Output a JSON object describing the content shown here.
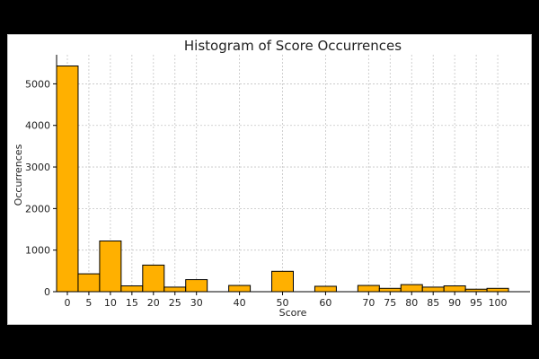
{
  "chart_data": {
    "type": "bar",
    "title": "Histogram of Score Occurrences",
    "xlabel": "Score",
    "ylabel": "Occurrences",
    "x": [
      0,
      5,
      10,
      15,
      20,
      25,
      30,
      40,
      50,
      60,
      70,
      75,
      80,
      85,
      90,
      95,
      100
    ],
    "values": [
      5430,
      430,
      1220,
      140,
      640,
      110,
      290,
      150,
      490,
      130,
      150,
      80,
      170,
      110,
      140,
      60,
      80
    ],
    "bin_width": 5,
    "xticks": [
      0,
      5,
      10,
      15,
      20,
      25,
      30,
      40,
      50,
      60,
      70,
      75,
      80,
      85,
      90,
      95,
      100
    ],
    "yticks": [
      0,
      1000,
      2000,
      3000,
      4000,
      5000
    ],
    "xlim": [
      -2.5,
      107.5
    ],
    "ylim": [
      0,
      5700
    ],
    "grid": true,
    "bar_color": "#ffb000",
    "edge_color": "#000000"
  }
}
